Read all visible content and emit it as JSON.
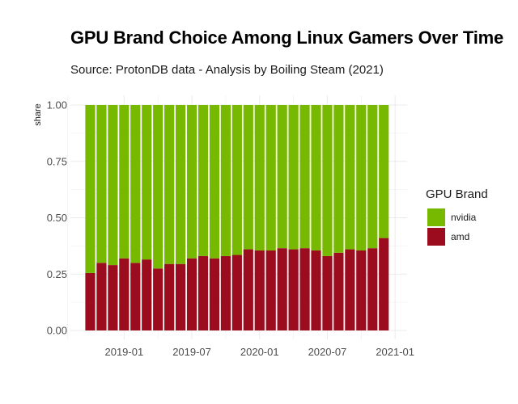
{
  "chart_data": {
    "type": "bar",
    "stacked": true,
    "title": "GPU Brand Choice Among Linux Gamers Over Time",
    "subtitle": "Source: ProtonDB data - Analysis by Boiling Steam (2021)",
    "ylabel": "share",
    "xlabel": "",
    "ylim": [
      0,
      1
    ],
    "yticks": [
      "0.00",
      "0.25",
      "0.50",
      "0.75",
      "1.00"
    ],
    "x_tick_labels": [
      "2019-01",
      "2019-07",
      "2020-01",
      "2020-07",
      "2021-01"
    ],
    "x_dates": [
      "2018-10",
      "2018-11",
      "2018-12",
      "2019-01",
      "2019-02",
      "2019-03",
      "2019-04",
      "2019-05",
      "2019-06",
      "2019-07",
      "2019-08",
      "2019-09",
      "2019-10",
      "2019-11",
      "2019-12",
      "2020-01",
      "2020-02",
      "2020-03",
      "2020-04",
      "2020-05",
      "2020-06",
      "2020-07",
      "2020-08",
      "2020-09",
      "2020-10",
      "2020-11",
      "2020-12"
    ],
    "grid": true,
    "legend_title": "GPU Brand",
    "legend_position": "right",
    "series": [
      {
        "name": "nvidia",
        "color": "#77b900",
        "values": [
          0.745,
          0.7,
          0.71,
          0.68,
          0.7,
          0.685,
          0.725,
          0.705,
          0.705,
          0.68,
          0.67,
          0.68,
          0.67,
          0.665,
          0.64,
          0.645,
          0.645,
          0.635,
          0.64,
          0.635,
          0.645,
          0.67,
          0.655,
          0.64,
          0.645,
          0.635,
          0.59
        ]
      },
      {
        "name": "amd",
        "color": "#9c0c1f",
        "values": [
          0.255,
          0.3,
          0.29,
          0.32,
          0.3,
          0.315,
          0.275,
          0.295,
          0.295,
          0.32,
          0.33,
          0.32,
          0.33,
          0.335,
          0.36,
          0.355,
          0.355,
          0.365,
          0.36,
          0.365,
          0.355,
          0.33,
          0.345,
          0.36,
          0.355,
          0.365,
          0.41
        ]
      }
    ]
  }
}
